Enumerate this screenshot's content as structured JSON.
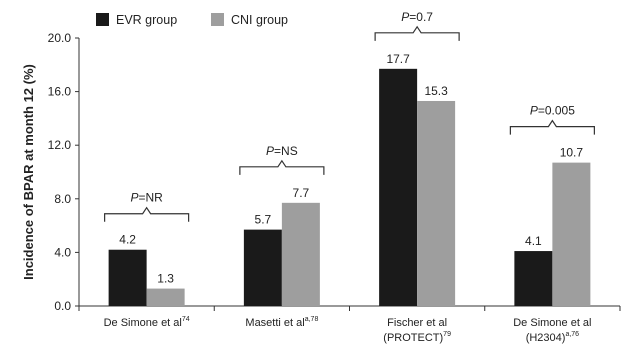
{
  "chart_data": {
    "type": "bar",
    "title": "",
    "xlabel": "",
    "ylabel": "Incidence of BPAR at month 12 (%)",
    "ylim": [
      0,
      20
    ],
    "yticks": [
      "0.0",
      "4.0",
      "8.0",
      "12.0",
      "16.0",
      "20.0"
    ],
    "grid": false,
    "legend_position": "top-left",
    "categories": [
      {
        "main": "De Simone et al",
        "sup": "74",
        "line2": "",
        "line2_sup": ""
      },
      {
        "main": "Masetti et al",
        "sup": "a,78",
        "line2": "",
        "line2_sup": ""
      },
      {
        "main": "Fischer et al",
        "sup": "",
        "line2": "(PROTECT)",
        "line2_sup": "79"
      },
      {
        "main": "De Simone et al",
        "sup": "",
        "line2": "(H2304)",
        "line2_sup": "a,76"
      }
    ],
    "series": [
      {
        "name": "EVR group",
        "color": "#1a1a1a",
        "values": [
          4.2,
          5.7,
          17.7,
          4.1
        ],
        "labels": [
          "4.2",
          "5.7",
          "17.7",
          "4.1"
        ]
      },
      {
        "name": "CNI group",
        "color": "#9e9e9e",
        "values": [
          1.3,
          7.7,
          15.3,
          10.7
        ],
        "labels": [
          "1.3",
          "7.7",
          "15.3",
          "10.7"
        ]
      }
    ],
    "annotations": [
      {
        "p": "P",
        "text": "=NR"
      },
      {
        "p": "P",
        "text": "=NS"
      },
      {
        "p": "P",
        "text": "=0.7"
      },
      {
        "p": "P",
        "text": "=0.005"
      }
    ]
  }
}
